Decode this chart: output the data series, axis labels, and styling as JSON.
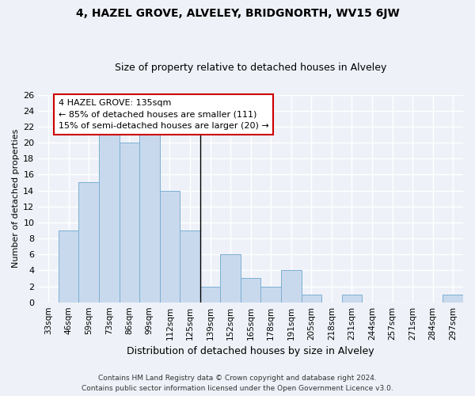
{
  "title1": "4, HAZEL GROVE, ALVELEY, BRIDGNORTH, WV15 6JW",
  "title2": "Size of property relative to detached houses in Alveley",
  "xlabel": "Distribution of detached houses by size in Alveley",
  "ylabel": "Number of detached properties",
  "categories": [
    "33sqm",
    "46sqm",
    "59sqm",
    "73sqm",
    "86sqm",
    "99sqm",
    "112sqm",
    "125sqm",
    "139sqm",
    "152sqm",
    "165sqm",
    "178sqm",
    "191sqm",
    "205sqm",
    "218sqm",
    "231sqm",
    "244sqm",
    "257sqm",
    "271sqm",
    "284sqm",
    "297sqm"
  ],
  "values": [
    0,
    9,
    15,
    22,
    20,
    22,
    14,
    9,
    2,
    6,
    3,
    2,
    4,
    1,
    0,
    1,
    0,
    0,
    0,
    0,
    1
  ],
  "bar_color": "#c9d9ed",
  "bar_edge_color": "#7aafd4",
  "vline_x": 7.5,
  "annotation_line1": "4 HAZEL GROVE: 135sqm",
  "annotation_line2": "← 85% of detached houses are smaller (111)",
  "annotation_line3": "15% of semi-detached houses are larger (20) →",
  "annotation_box_color": "#ffffff",
  "annotation_box_edge": "#cc0000",
  "ylim": [
    0,
    26
  ],
  "yticks": [
    0,
    2,
    4,
    6,
    8,
    10,
    12,
    14,
    16,
    18,
    20,
    22,
    24,
    26
  ],
  "footer1": "Contains HM Land Registry data © Crown copyright and database right 2024.",
  "footer2": "Contains public sector information licensed under the Open Government Licence v3.0.",
  "bg_color": "#eef2f8",
  "grid_color": "#ffffff",
  "title1_fontsize": 10,
  "title2_fontsize": 9,
  "annotation_fontsize": 8,
  "xlabel_fontsize": 9,
  "ylabel_fontsize": 8,
  "tick_fontsize": 7.5,
  "footer_fontsize": 6.5
}
